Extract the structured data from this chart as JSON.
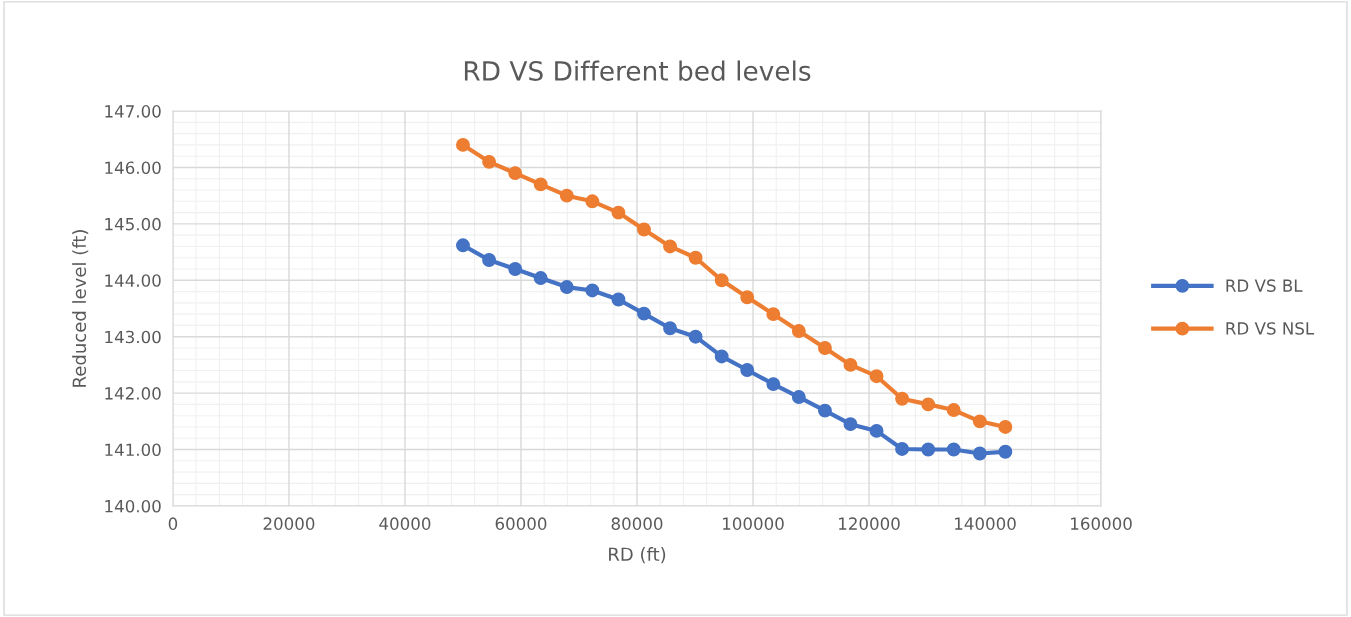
{
  "chart_data": {
    "type": "line",
    "title": "RD VS Different bed levels",
    "xlabel": "RD (ft)",
    "ylabel": "Reduced level (ft)",
    "x": [
      50000,
      54500,
      59000,
      63400,
      67900,
      72300,
      76800,
      81200,
      85700,
      90100,
      94600,
      99000,
      103500,
      107900,
      112400,
      116800,
      121300,
      125700,
      130200,
      134600,
      139100,
      143500
    ],
    "series": [
      {
        "name": "RD VS BL",
        "color": "#4472c4",
        "values": [
          144.62,
          144.36,
          144.2,
          144.04,
          143.88,
          143.82,
          143.66,
          143.41,
          143.15,
          143.0,
          142.65,
          142.41,
          142.16,
          141.93,
          141.69,
          141.45,
          141.33,
          141.01,
          141.0,
          141.0,
          140.93,
          140.96
        ]
      },
      {
        "name": "RD VS NSL",
        "color": "#ed7d31",
        "values": [
          146.4,
          146.1,
          145.9,
          145.7,
          145.5,
          145.4,
          145.2,
          144.9,
          144.6,
          144.4,
          144.0,
          143.7,
          143.4,
          143.1,
          142.8,
          142.5,
          142.3,
          141.9,
          141.8,
          141.7,
          141.5,
          141.4
        ]
      }
    ],
    "xlim": [
      0,
      160000
    ],
    "xticks": [
      0,
      20000,
      40000,
      60000,
      80000,
      100000,
      120000,
      140000,
      160000
    ],
    "ylim": [
      140,
      147
    ],
    "yticks": [
      {
        "value": 140,
        "label": "140.00"
      },
      {
        "value": 141,
        "label": "141.00"
      },
      {
        "value": 142,
        "label": "142.00"
      },
      {
        "value": 143,
        "label": "143.00"
      },
      {
        "value": 144,
        "label": "144.00"
      },
      {
        "value": 145,
        "label": "145.00"
      },
      {
        "value": 146,
        "label": "146.00"
      },
      {
        "value": 147,
        "label": "147.00"
      }
    ],
    "grid": true,
    "legend": "right",
    "marker": "circle",
    "line_style": "solid"
  }
}
